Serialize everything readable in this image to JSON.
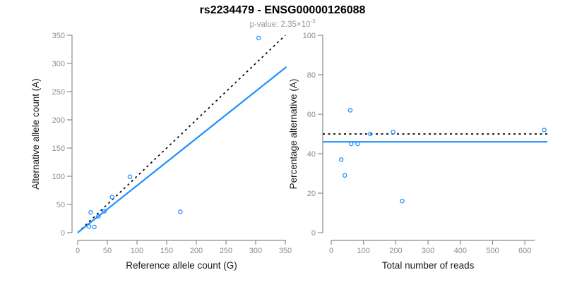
{
  "header": {
    "title": "rs2234479 - ENSG00000126088",
    "subtitle_prefix": "p-value: ",
    "subtitle_value": "2.35×10",
    "subtitle_exponent": "-3",
    "p_value": "2.35e-3"
  },
  "colors": {
    "point": "#1e90ff",
    "fit_line": "#1e90ff",
    "reference_line": "#000000",
    "axis": "#8c8c8c",
    "tick_label": "#8c8c8c",
    "axis_title": "#1a1a1a",
    "title": "#000000",
    "subtitle": "#989898"
  },
  "chart_data": [
    {
      "type": "scatter",
      "panel": "allele-counts",
      "xlabel": "Reference allele count (G)",
      "ylabel": "Alternative allele count (A)",
      "xticks": [
        0,
        50,
        100,
        150,
        200,
        250,
        300,
        350
      ],
      "yticks": [
        0,
        50,
        100,
        150,
        200,
        250,
        300,
        350
      ],
      "xlim": [
        0,
        357
      ],
      "ylim": [
        0,
        352
      ],
      "grid": false,
      "legend": "none",
      "marker": "open-circle",
      "points": [
        [
          305,
          345
        ],
        [
          173,
          37
        ],
        [
          88,
          99
        ],
        [
          58,
          63
        ],
        [
          45,
          38
        ],
        [
          35,
          29
        ],
        [
          22,
          36
        ],
        [
          28,
          10
        ],
        [
          19,
          11
        ]
      ],
      "lines": [
        {
          "label": "identity-1to1",
          "style": "dashed",
          "color_key": "reference_line",
          "from": [
            0,
            0
          ],
          "to": [
            350,
            350
          ]
        },
        {
          "label": "fitted-proportion",
          "style": "solid",
          "color_key": "fit_line",
          "from": [
            0,
            0
          ],
          "to": [
            352,
            294
          ]
        }
      ]
    },
    {
      "type": "scatter",
      "panel": "percentage-vs-coverage",
      "xlabel": "Total number of reads",
      "ylabel": "Percentage alternative (A)",
      "xticks": [
        0,
        100,
        200,
        300,
        400,
        500,
        600
      ],
      "yticks": [
        0,
        20,
        40,
        60,
        80,
        100
      ],
      "xlim": [
        0,
        670
      ],
      "ylim": [
        0,
        100
      ],
      "grid": false,
      "legend": "none",
      "marker": "open-circle",
      "points": [
        [
          59,
          62
        ],
        [
          121,
          50
        ],
        [
          192,
          51
        ],
        [
          62,
          45
        ],
        [
          82,
          45
        ],
        [
          31,
          37
        ],
        [
          42,
          29
        ],
        [
          220,
          16
        ],
        [
          660,
          52
        ]
      ],
      "lines": [
        {
          "label": "expected-50-percent",
          "style": "dashed",
          "color_key": "reference_line",
          "y": 50
        },
        {
          "label": "fitted-percentage",
          "style": "solid",
          "color_key": "fit_line",
          "y": 46
        }
      ]
    }
  ]
}
